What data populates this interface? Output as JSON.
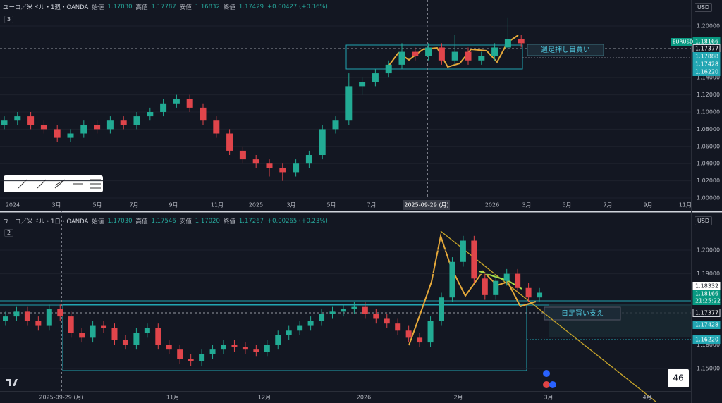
{
  "top": {
    "symbol": "ユーロ／米ドル・1週・OANDA",
    "indicators": "3",
    "currency": "USD",
    "ohlc": [
      {
        "label": "始値",
        "value": "1.17030"
      },
      {
        "label": "高値",
        "value": "1.17787"
      },
      {
        "label": "安値",
        "value": "1.16832"
      },
      {
        "label": "終値",
        "value": "1.17429"
      }
    ],
    "change": "+0.00427 (+0.36%)",
    "ylim": [
      0.9992,
      1.2139
    ],
    "yticks": [
      {
        "value": 1.2,
        "label": "1.20000"
      },
      {
        "value": 1.14,
        "label": "1.14000"
      },
      {
        "value": 1.12,
        "label": "1.12000"
      },
      {
        "value": 1.1,
        "label": "1.10000"
      },
      {
        "value": 1.08,
        "label": "1.08000"
      },
      {
        "value": 1.06,
        "label": "1.06000"
      },
      {
        "value": 1.04,
        "label": "1.04000"
      },
      {
        "value": 1.02,
        "label": "1.02000"
      },
      {
        "value": 1.0,
        "label": "1.00000"
      }
    ],
    "time_labels": [
      "2024",
      "3月",
      "5月",
      "7月",
      "9月",
      "11月",
      "2025",
      "3月",
      "5月",
      "7月",
      "2026",
      "3月",
      "5月",
      "7月",
      "9月",
      "11月"
    ],
    "crosshair_date": "2025-09-29 (月)",
    "symbol_tag": "EURUSD",
    "price_tags": [
      "1.18166",
      "1.17377",
      "1.17888",
      "1.17428",
      "1.16220"
    ],
    "annotation": "週足押し目買い",
    "candles": [
      [
        1.085,
        1.095,
        1.08,
        1.09
      ],
      [
        1.09,
        1.1,
        1.085,
        1.095
      ],
      [
        1.095,
        1.1,
        1.08,
        1.085
      ],
      [
        1.085,
        1.09,
        1.075,
        1.08
      ],
      [
        1.08,
        1.085,
        1.065,
        1.07
      ],
      [
        1.07,
        1.08,
        1.065,
        1.075
      ],
      [
        1.075,
        1.09,
        1.07,
        1.085
      ],
      [
        1.085,
        1.09,
        1.075,
        1.08
      ],
      [
        1.08,
        1.095,
        1.075,
        1.09
      ],
      [
        1.09,
        1.095,
        1.08,
        1.085
      ],
      [
        1.085,
        1.1,
        1.08,
        1.095
      ],
      [
        1.095,
        1.105,
        1.09,
        1.1
      ],
      [
        1.1,
        1.115,
        1.095,
        1.11
      ],
      [
        1.11,
        1.12,
        1.105,
        1.115
      ],
      [
        1.115,
        1.12,
        1.1,
        1.105
      ],
      [
        1.105,
        1.11,
        1.085,
        1.09
      ],
      [
        1.09,
        1.095,
        1.07,
        1.075
      ],
      [
        1.075,
        1.08,
        1.05,
        1.055
      ],
      [
        1.055,
        1.06,
        1.04,
        1.045
      ],
      [
        1.045,
        1.05,
        1.035,
        1.04
      ],
      [
        1.04,
        1.045,
        1.025,
        1.035
      ],
      [
        1.035,
        1.04,
        1.02,
        1.03
      ],
      [
        1.03,
        1.045,
        1.025,
        1.04
      ],
      [
        1.04,
        1.055,
        1.035,
        1.05
      ],
      [
        1.05,
        1.085,
        1.045,
        1.08
      ],
      [
        1.08,
        1.095,
        1.075,
        1.09
      ],
      [
        1.09,
        1.145,
        1.085,
        1.13
      ],
      [
        1.13,
        1.14,
        1.12,
        1.135
      ],
      [
        1.135,
        1.15,
        1.13,
        1.145
      ],
      [
        1.145,
        1.16,
        1.14,
        1.155
      ],
      [
        1.155,
        1.18,
        1.15,
        1.17
      ],
      [
        1.17,
        1.175,
        1.16,
        1.165
      ],
      [
        1.165,
        1.18,
        1.16,
        1.175
      ],
      [
        1.175,
        1.18,
        1.155,
        1.16
      ],
      [
        1.16,
        1.19,
        1.155,
        1.17
      ],
      [
        1.17,
        1.175,
        1.155,
        1.16
      ],
      [
        1.16,
        1.17,
        1.155,
        1.165
      ],
      [
        1.165,
        1.18,
        1.16,
        1.175
      ],
      [
        1.175,
        1.21,
        1.17,
        1.185
      ],
      [
        1.185,
        1.19,
        1.175,
        1.18
      ]
    ]
  },
  "bottom": {
    "symbol": "ユーロ／米ドル・1日・OANDA",
    "indicators": "2",
    "currency": "USD",
    "ohlc": [
      {
        "label": "始値",
        "value": "1.17030"
      },
      {
        "label": "高値",
        "value": "1.17546"
      },
      {
        "label": "安値",
        "value": "1.17020"
      },
      {
        "label": "終値",
        "value": "1.17267"
      }
    ],
    "change": "+0.00265 (+0.23%)",
    "ylim": [
      1.1405,
      1.2104
    ],
    "yticks": [
      {
        "value": 1.2,
        "label": "1.20000"
      },
      {
        "value": 1.19,
        "label": "1.19000"
      },
      {
        "value": 1.16,
        "label": "1.16000"
      },
      {
        "value": 1.15,
        "label": "1.15000"
      }
    ],
    "time_labels": [
      "2025-09-29 (月)",
      "11月",
      "12月",
      "2026",
      "2月",
      "3月",
      "4月"
    ],
    "price_tags": [
      "1.18332",
      "1.18166",
      "21:25:22",
      "1.17377",
      "1.17428",
      "1.16220"
    ],
    "annotation": "日足買い支え",
    "badge": "46",
    "candles": [
      [
        1.17,
        1.174,
        1.168,
        1.172
      ],
      [
        1.172,
        1.176,
        1.17,
        1.174
      ],
      [
        1.174,
        1.176,
        1.168,
        1.17
      ],
      [
        1.17,
        1.172,
        1.166,
        1.168
      ],
      [
        1.168,
        1.177,
        1.166,
        1.175
      ],
      [
        1.175,
        1.177,
        1.17,
        1.172
      ],
      [
        1.172,
        1.174,
        1.163,
        1.165
      ],
      [
        1.165,
        1.167,
        1.161,
        1.163
      ],
      [
        1.163,
        1.17,
        1.161,
        1.168
      ],
      [
        1.168,
        1.17,
        1.165,
        1.167
      ],
      [
        1.167,
        1.169,
        1.16,
        1.162
      ],
      [
        1.162,
        1.164,
        1.158,
        1.16
      ],
      [
        1.16,
        1.167,
        1.158,
        1.165
      ],
      [
        1.165,
        1.169,
        1.163,
        1.167
      ],
      [
        1.167,
        1.169,
        1.158,
        1.16
      ],
      [
        1.16,
        1.162,
        1.156,
        1.158
      ],
      [
        1.158,
        1.16,
        1.152,
        1.154
      ],
      [
        1.154,
        1.156,
        1.151,
        1.153
      ],
      [
        1.153,
        1.158,
        1.151,
        1.156
      ],
      [
        1.156,
        1.16,
        1.154,
        1.158
      ],
      [
        1.158,
        1.162,
        1.156,
        1.16
      ],
      [
        1.16,
        1.162,
        1.157,
        1.159
      ],
      [
        1.159,
        1.161,
        1.156,
        1.158
      ],
      [
        1.158,
        1.16,
        1.155,
        1.157
      ],
      [
        1.157,
        1.162,
        1.155,
        1.16
      ],
      [
        1.16,
        1.166,
        1.158,
        1.164
      ],
      [
        1.164,
        1.168,
        1.162,
        1.166
      ],
      [
        1.166,
        1.17,
        1.164,
        1.168
      ],
      [
        1.168,
        1.172,
        1.166,
        1.17
      ],
      [
        1.17,
        1.175,
        1.168,
        1.173
      ],
      [
        1.173,
        1.176,
        1.171,
        1.174
      ],
      [
        1.174,
        1.177,
        1.172,
        1.175
      ],
      [
        1.175,
        1.178,
        1.173,
        1.176
      ],
      [
        1.176,
        1.178,
        1.171,
        1.173
      ],
      [
        1.173,
        1.175,
        1.169,
        1.171
      ],
      [
        1.171,
        1.173,
        1.167,
        1.169
      ],
      [
        1.169,
        1.171,
        1.164,
        1.166
      ],
      [
        1.166,
        1.168,
        1.161,
        1.163
      ],
      [
        1.163,
        1.165,
        1.159,
        1.161
      ],
      [
        1.161,
        1.172,
        1.159,
        1.17
      ],
      [
        1.17,
        1.182,
        1.168,
        1.18
      ],
      [
        1.18,
        1.197,
        1.178,
        1.195
      ],
      [
        1.195,
        1.206,
        1.193,
        1.204
      ],
      [
        1.204,
        1.206,
        1.186,
        1.188
      ],
      [
        1.188,
        1.19,
        1.179,
        1.181
      ],
      [
        1.181,
        1.189,
        1.179,
        1.187
      ],
      [
        1.187,
        1.192,
        1.185,
        1.19
      ],
      [
        1.19,
        1.192,
        1.182,
        1.184
      ],
      [
        1.184,
        1.186,
        1.178,
        1.18
      ],
      [
        1.18,
        1.184,
        1.178,
        1.182
      ]
    ]
  }
}
